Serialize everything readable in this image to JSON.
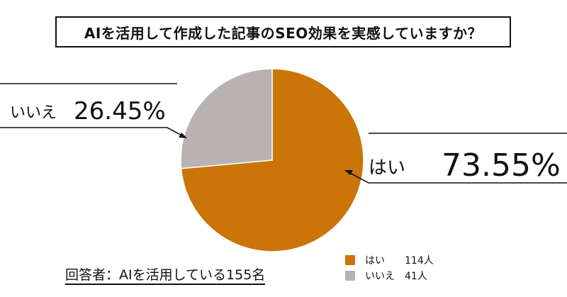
{
  "title": "AIを活用して作成した記事のSEO効果を実感していますか？",
  "footnote": "回答者：AIを活用している155名",
  "colors": {
    "yes": "#cb7407",
    "no": "#b8b3b1",
    "line": "#111111"
  },
  "chart_data": {
    "type": "pie",
    "title": "AIを活用して作成した記事のSEO効果を実感していますか？",
    "slices": [
      {
        "label": "はい",
        "count": 114,
        "count_label": "114人",
        "percent": 73.55,
        "percent_label": "73.55%",
        "color": "#cb7407"
      },
      {
        "label": "いいえ",
        "count": 41,
        "count_label": "41人",
        "percent": 26.45,
        "percent_label": "26.45%",
        "color": "#b8b3b1"
      }
    ],
    "legend_position": "bottom-right"
  }
}
